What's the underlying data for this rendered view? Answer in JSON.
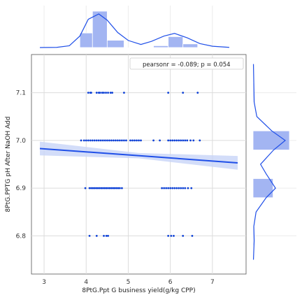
{
  "chart_data": {
    "type": "scatter",
    "xlabel": "8PtG.Ppt G business yield(g/kg CPP)",
    "ylabel": "8PtG.PPTG pH After NaOH Add",
    "xlim": [
      2.7,
      7.8
    ],
    "ylim": [
      6.72,
      7.18
    ],
    "xticks": [
      "3",
      "4",
      "5",
      "6",
      "7"
    ],
    "yticks": [
      "6.8",
      "6.9",
      "7.0",
      "7.1"
    ],
    "annotation": "pearsonr = -0.089; p = 0.054",
    "legend_position": "top-right",
    "grid": true,
    "colors": {
      "points": "#0b3fd6",
      "line": "#1f4fe8",
      "ci_band": "#c8d4f8",
      "hist_bar": "#a3b5f2",
      "kde": "#1f4fe8",
      "grid": "#dcdcdc",
      "frame": "#555555"
    },
    "regression": {
      "x0": 2.9,
      "y0": 6.983,
      "x1": 7.6,
      "y1": 6.953,
      "ci_width": 0.016
    },
    "points": [
      [
        4.05,
        7.1
      ],
      [
        4.1,
        7.1
      ],
      [
        4.12,
        7.1
      ],
      [
        4.25,
        7.1
      ],
      [
        4.3,
        7.1
      ],
      [
        4.33,
        7.1
      ],
      [
        4.38,
        7.1
      ],
      [
        4.42,
        7.1
      ],
      [
        4.47,
        7.1
      ],
      [
        4.52,
        7.1
      ],
      [
        4.58,
        7.1
      ],
      [
        4.62,
        7.1
      ],
      [
        4.9,
        7.1
      ],
      [
        5.95,
        7.1
      ],
      [
        6.3,
        7.1
      ],
      [
        6.65,
        7.1
      ],
      [
        3.88,
        7.0
      ],
      [
        3.95,
        7.0
      ],
      [
        4.0,
        7.0
      ],
      [
        4.05,
        7.0
      ],
      [
        4.1,
        7.0
      ],
      [
        4.15,
        7.0
      ],
      [
        4.2,
        7.0
      ],
      [
        4.25,
        7.0
      ],
      [
        4.3,
        7.0
      ],
      [
        4.35,
        7.0
      ],
      [
        4.4,
        7.0
      ],
      [
        4.45,
        7.0
      ],
      [
        4.5,
        7.0
      ],
      [
        4.55,
        7.0
      ],
      [
        4.6,
        7.0
      ],
      [
        4.65,
        7.0
      ],
      [
        4.7,
        7.0
      ],
      [
        4.75,
        7.0
      ],
      [
        4.8,
        7.0
      ],
      [
        4.85,
        7.0
      ],
      [
        4.9,
        7.0
      ],
      [
        4.95,
        7.0
      ],
      [
        5.05,
        7.0
      ],
      [
        5.1,
        7.0
      ],
      [
        5.15,
        7.0
      ],
      [
        5.2,
        7.0
      ],
      [
        5.25,
        7.0
      ],
      [
        5.3,
        7.0
      ],
      [
        5.6,
        7.0
      ],
      [
        5.75,
        7.0
      ],
      [
        5.95,
        7.0
      ],
      [
        6.0,
        7.0
      ],
      [
        6.05,
        7.0
      ],
      [
        6.1,
        7.0
      ],
      [
        6.15,
        7.0
      ],
      [
        6.2,
        7.0
      ],
      [
        6.25,
        7.0
      ],
      [
        6.3,
        7.0
      ],
      [
        6.35,
        7.0
      ],
      [
        6.4,
        7.0
      ],
      [
        6.48,
        7.0
      ],
      [
        6.55,
        7.0
      ],
      [
        6.7,
        7.0
      ],
      [
        3.98,
        6.9
      ],
      [
        4.08,
        6.9
      ],
      [
        4.12,
        6.9
      ],
      [
        4.16,
        6.9
      ],
      [
        4.2,
        6.9
      ],
      [
        4.24,
        6.9
      ],
      [
        4.28,
        6.9
      ],
      [
        4.32,
        6.9
      ],
      [
        4.36,
        6.9
      ],
      [
        4.4,
        6.9
      ],
      [
        4.44,
        6.9
      ],
      [
        4.48,
        6.9
      ],
      [
        4.52,
        6.9
      ],
      [
        4.56,
        6.9
      ],
      [
        4.6,
        6.9
      ],
      [
        4.64,
        6.9
      ],
      [
        4.68,
        6.9
      ],
      [
        4.72,
        6.9
      ],
      [
        4.76,
        6.9
      ],
      [
        4.8,
        6.9
      ],
      [
        4.85,
        6.9
      ],
      [
        5.8,
        6.9
      ],
      [
        5.85,
        6.9
      ],
      [
        5.9,
        6.9
      ],
      [
        5.95,
        6.9
      ],
      [
        6.0,
        6.9
      ],
      [
        6.05,
        6.9
      ],
      [
        6.1,
        6.9
      ],
      [
        6.15,
        6.9
      ],
      [
        6.2,
        6.9
      ],
      [
        6.25,
        6.9
      ],
      [
        6.3,
        6.9
      ],
      [
        6.35,
        6.9
      ],
      [
        6.42,
        6.9
      ],
      [
        6.5,
        6.9
      ],
      [
        4.08,
        6.8
      ],
      [
        4.25,
        6.8
      ],
      [
        4.42,
        6.8
      ],
      [
        4.48,
        6.8
      ],
      [
        4.52,
        6.8
      ],
      [
        5.95,
        6.8
      ],
      [
        6.02,
        6.8
      ],
      [
        6.08,
        6.8
      ],
      [
        6.3,
        6.8
      ],
      [
        6.52,
        6.8
      ]
    ],
    "x_histogram": {
      "bins": [
        [
          3.85,
          4.15,
          2
        ],
        [
          4.15,
          4.5,
          5
        ],
        [
          4.5,
          4.9,
          1
        ],
        [
          5.6,
          5.95,
          0.25
        ],
        [
          5.95,
          6.3,
          1.5
        ],
        [
          6.3,
          6.65,
          0.5
        ]
      ],
      "kde": [
        [
          2.9,
          0
        ],
        [
          3.3,
          0.02
        ],
        [
          3.6,
          0.2
        ],
        [
          3.85,
          1.3
        ],
        [
          4.05,
          3.2
        ],
        [
          4.3,
          3.8
        ],
        [
          4.5,
          3.1
        ],
        [
          4.75,
          1.7
        ],
        [
          5.0,
          0.8
        ],
        [
          5.3,
          0.35
        ],
        [
          5.55,
          0.7
        ],
        [
          5.85,
          1.3
        ],
        [
          6.1,
          1.6
        ],
        [
          6.4,
          1.1
        ],
        [
          6.7,
          0.45
        ],
        [
          7.0,
          0.15
        ],
        [
          7.4,
          0.02
        ]
      ]
    },
    "y_histogram": {
      "bins": [
        [
          7.12,
          7.08,
          0.02
        ],
        [
          7.02,
          6.98,
          1
        ],
        [
          6.92,
          6.88,
          0.55
        ],
        [
          6.82,
          6.78,
          0.02
        ]
      ],
      "kde": [
        [
          7.16,
          0.01
        ],
        [
          7.12,
          0.02
        ],
        [
          7.08,
          0.03
        ],
        [
          7.05,
          0.1
        ],
        [
          7.02,
          0.5
        ],
        [
          7.0,
          0.86
        ],
        [
          6.98,
          0.55
        ],
        [
          6.95,
          0.2
        ],
        [
          6.93,
          0.35
        ],
        [
          6.9,
          0.6
        ],
        [
          6.88,
          0.35
        ],
        [
          6.85,
          0.08
        ],
        [
          6.82,
          0.02
        ],
        [
          6.79,
          0.03
        ],
        [
          6.75,
          0.01
        ]
      ]
    }
  }
}
